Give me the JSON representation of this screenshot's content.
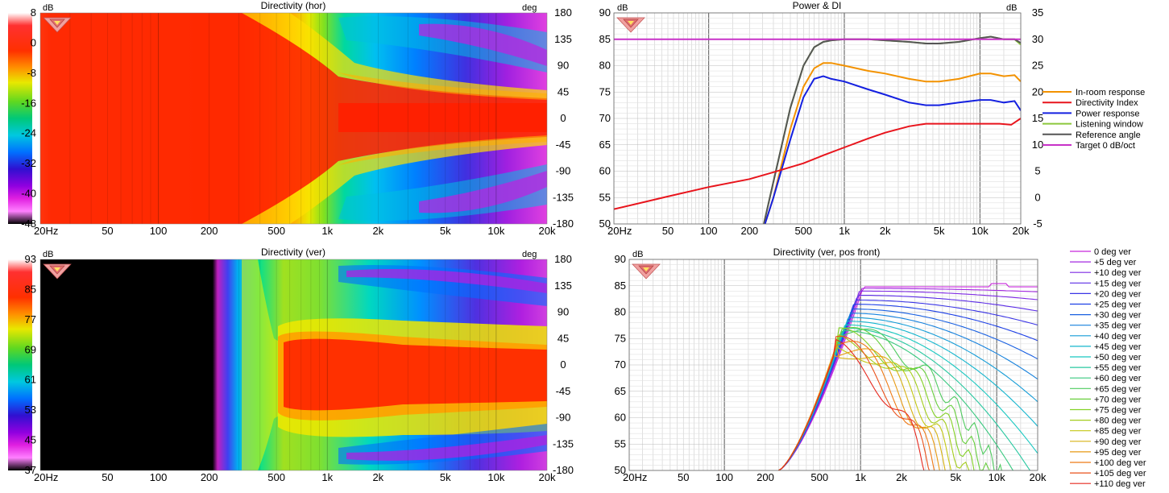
{
  "colors": {
    "accent_orange": "#f39200",
    "red": "#e8141c",
    "blue": "#1420e0",
    "green": "#8cc83c",
    "grey": "#555555",
    "magenta": "#c832c8"
  },
  "icon": "speaker-logo-icon",
  "chart_data": [
    {
      "type": "heatmap",
      "title": "Directivity (hor)",
      "colorbar_unit": "dB",
      "colorbar_ticks": [
        "8",
        "0",
        "-8",
        "-16",
        "-24",
        "-32",
        "-40",
        "-48"
      ],
      "y_unit": "deg",
      "y_ticks": [
        "180",
        "135",
        "90",
        "45",
        "0",
        "-45",
        "-90",
        "-135",
        "-180"
      ],
      "ylim": [
        -180,
        180
      ],
      "x_ticks": [
        "20Hz",
        "50",
        "100",
        "200",
        "500",
        "1k",
        "2k",
        "5k",
        "10k",
        "20k"
      ],
      "x_tick_values": [
        20,
        50,
        100,
        200,
        500,
        1000,
        2000,
        5000,
        10000,
        20000
      ],
      "xlim": [
        20,
        20000
      ],
      "x_scale": "log"
    },
    {
      "type": "line",
      "title": "Power & DI",
      "ylabel_left": "dB",
      "ylabel_right": "dB",
      "y_ticks_left": [
        "90",
        "85",
        "80",
        "75",
        "70",
        "65",
        "60",
        "55",
        "50"
      ],
      "ylim_left": [
        50,
        90
      ],
      "y_ticks_right": [
        "35",
        "30",
        "25",
        "20",
        "15",
        "10",
        "5",
        "0",
        "-5"
      ],
      "ylim_right": [
        -5,
        35
      ],
      "x_ticks": [
        "20Hz",
        "50",
        "100",
        "200",
        "500",
        "1k",
        "2k",
        "5k",
        "10k",
        "20k"
      ],
      "x_tick_values": [
        20,
        50,
        100,
        200,
        500,
        1000,
        2000,
        5000,
        10000,
        20000
      ],
      "xlim": [
        20,
        20000
      ],
      "x_scale": "log",
      "grid": true,
      "legend_position": "right",
      "series": [
        {
          "name": "In-room response",
          "color": "#f39200",
          "axis": "left",
          "x": [
            260,
            300,
            400,
            500,
            600,
            700,
            800,
            1000,
            1500,
            2000,
            3000,
            4000,
            5000,
            7000,
            10000,
            12000,
            15000,
            18000,
            20000
          ],
          "y": [
            50,
            55,
            68,
            76,
            79.5,
            80.5,
            80.5,
            80,
            79,
            78.5,
            77.5,
            77,
            77,
            77.5,
            78.5,
            78.5,
            78,
            78.2,
            77
          ]
        },
        {
          "name": "Directivity Index",
          "color": "#e8141c",
          "axis": "right",
          "x": [
            20,
            50,
            100,
            200,
            300,
            500,
            700,
            1000,
            1500,
            2000,
            3000,
            4000,
            5000,
            7000,
            10000,
            14000,
            17000,
            20000
          ],
          "y": [
            -2.2,
            0.2,
            2,
            3.5,
            4.8,
            6.5,
            8,
            9.5,
            11.2,
            12.3,
            13.5,
            14,
            14,
            14,
            14,
            14,
            13.8,
            15
          ]
        },
        {
          "name": "Power response",
          "color": "#1420e0",
          "axis": "left",
          "x": [
            260,
            300,
            400,
            500,
            600,
            700,
            800,
            1000,
            1500,
            2000,
            3000,
            4000,
            5000,
            7000,
            10000,
            12000,
            15000,
            18000,
            20000
          ],
          "y": [
            50,
            55,
            66,
            74,
            77.5,
            78,
            77.5,
            77,
            75.5,
            74.5,
            73,
            72.5,
            72.5,
            73,
            73.5,
            73.5,
            73,
            73.3,
            71.5
          ]
        },
        {
          "name": "Listening window",
          "color": "#8cc83c",
          "axis": "left",
          "x": [
            255,
            300,
            400,
            500,
            600,
            700,
            800,
            1000,
            1500,
            2000,
            3000,
            4000,
            5000,
            7000,
            10000,
            12000,
            15000,
            18000,
            20000
          ],
          "y": [
            50,
            58,
            72,
            80,
            83.5,
            84.5,
            84.8,
            85,
            85,
            84.8,
            84.5,
            84.2,
            84.2,
            84.5,
            85.2,
            85.5,
            85,
            85,
            84
          ]
        },
        {
          "name": "Reference angle",
          "color": "#555555",
          "axis": "left",
          "x": [
            255,
            300,
            400,
            500,
            600,
            700,
            800,
            1000,
            1500,
            2000,
            3000,
            4000,
            5000,
            7000,
            10000,
            12000,
            15000,
            18000,
            20000
          ],
          "y": [
            50,
            58,
            72,
            80,
            83.5,
            84.5,
            84.8,
            85,
            85,
            84.8,
            84.5,
            84.2,
            84.2,
            84.5,
            85.2,
            85.5,
            85,
            85,
            84.3
          ]
        },
        {
          "name": "Target 0 dB/oct",
          "color": "#c832c8",
          "axis": "left",
          "x": [
            20,
            20000
          ],
          "y": [
            85,
            85
          ]
        }
      ]
    },
    {
      "type": "heatmap",
      "title": "Directivity (ver)",
      "colorbar_unit": "dB",
      "colorbar_ticks": [
        "93",
        "85",
        "77",
        "69",
        "61",
        "53",
        "45",
        "37"
      ],
      "y_unit": "deg",
      "y_ticks": [
        "180",
        "135",
        "90",
        "45",
        "0",
        "-45",
        "-90",
        "-135",
        "-180"
      ],
      "ylim": [
        -180,
        180
      ],
      "x_ticks": [
        "20Hz",
        "50",
        "100",
        "200",
        "500",
        "1k",
        "2k",
        "5k",
        "10k",
        "20k"
      ],
      "x_tick_values": [
        20,
        50,
        100,
        200,
        500,
        1000,
        2000,
        5000,
        10000,
        20000
      ],
      "xlim": [
        20,
        20000
      ],
      "x_scale": "log"
    },
    {
      "type": "line",
      "title": "Directivity (ver, pos front)",
      "ylabel": "dB",
      "y_ticks": [
        "90",
        "85",
        "80",
        "75",
        "70",
        "65",
        "60",
        "55",
        "50"
      ],
      "ylim": [
        50,
        90
      ],
      "x_ticks": [
        "20Hz",
        "50",
        "100",
        "200",
        "500",
        "1k",
        "2k",
        "5k",
        "10k",
        "20k"
      ],
      "x_tick_values": [
        20,
        50,
        100,
        200,
        500,
        1000,
        2000,
        5000,
        10000,
        20000
      ],
      "xlim": [
        20,
        20000
      ],
      "x_scale": "log",
      "grid": true,
      "legend_position": "right",
      "legend": [
        "0 deg ver",
        "+5 deg ver",
        "+10 deg ver",
        "+15 deg ver",
        "+20 deg ver",
        "+25 deg ver",
        "+30 deg ver",
        "+35 deg ver",
        "+40 deg ver",
        "+45 deg ver",
        "+50 deg ver",
        "+55 deg ver",
        "+60 deg ver",
        "+65 deg ver",
        "+70 deg ver",
        "+75 deg ver",
        "+80 deg ver",
        "+85 deg ver",
        "+90 deg ver",
        "+95 deg ver",
        "+100 deg ver",
        "+105 deg ver",
        "+110 deg ver"
      ],
      "series_peak_db": [
        84.8,
        84.5,
        84,
        83.2,
        82.3,
        81.5,
        80.6,
        79.8,
        79,
        78.3,
        77.6,
        77,
        76.5,
        76,
        75.5,
        75,
        74.6,
        74.2,
        73.8,
        73.4,
        73,
        72.7,
        72.4
      ]
    }
  ]
}
